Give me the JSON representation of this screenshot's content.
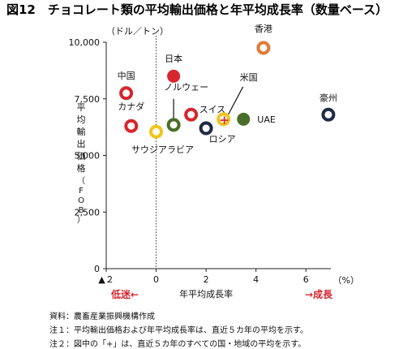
{
  "chart_data": {
    "type": "scatter",
    "title": "図12　チョコレート類の平均輸出価格と年平均成長率（数量ベース）",
    "y_unit": "（ドル／トン）",
    "x_unit": "（%）",
    "xlabel": "年平均成長率",
    "ylabel": "平均輸出価格（FOB）",
    "xlim": [
      -2,
      7
    ],
    "ylim": [
      0,
      10000
    ],
    "x_ticks": [
      -2,
      0,
      2,
      4,
      6
    ],
    "x_tick_labels": [
      "▲２",
      "0",
      "2",
      "4",
      "6"
    ],
    "y_ticks": [
      0,
      2500,
      5000,
      7500,
      10000
    ],
    "y_tick_labels": [
      "0",
      "2,500",
      "5,000",
      "7,500",
      "10,000"
    ],
    "low_growth_label": "低迷←",
    "high_growth_label": "→成長",
    "average_label": "+",
    "points": [
      {
        "name": "香港",
        "x": 4.3,
        "y": 9750,
        "color": "#e07b39",
        "style": "ring"
      },
      {
        "name": "日本",
        "x": 0.7,
        "y": 8500,
        "color": "#d7262d",
        "style": "solid"
      },
      {
        "name": "中国",
        "x": -1.2,
        "y": 7750,
        "color": "#d7262d",
        "style": "ring"
      },
      {
        "name": "カナダ",
        "x": -1.0,
        "y": 6300,
        "color": "#d7262d",
        "style": "ring"
      },
      {
        "name": "ノルウェー",
        "x": 0.7,
        "y": 6350,
        "color": "#4a6e2a",
        "style": "ring"
      },
      {
        "name": "スイス",
        "x": 1.4,
        "y": 6800,
        "color": "#d7262d",
        "style": "ring"
      },
      {
        "name": "米国",
        "x": 2.7,
        "y": 6600,
        "color": "#f0c419",
        "style": "ring"
      },
      {
        "name": "UAE",
        "x": 3.5,
        "y": 6600,
        "color": "#4a6e2a",
        "style": "solid"
      },
      {
        "name": "豪州",
        "x": 6.9,
        "y": 6800,
        "color": "#1f2a44",
        "style": "ring"
      },
      {
        "name": "サウジアラビア",
        "x": 0.0,
        "y": 6050,
        "color": "#f0c419",
        "style": "ring"
      },
      {
        "name": "ロシア",
        "x": 2.0,
        "y": 6200,
        "color": "#1f2a44",
        "style": "ring"
      }
    ],
    "grid": false,
    "legend": "none"
  },
  "notes": [
    "資料：農畜産業振興機構作成",
    "注１：平均輸出価格および年平均成長率は、直近５カ年の平均を示す。",
    "注２：図中の「+」は、直近５カ年のすべての国・地域の平均を示す。"
  ]
}
